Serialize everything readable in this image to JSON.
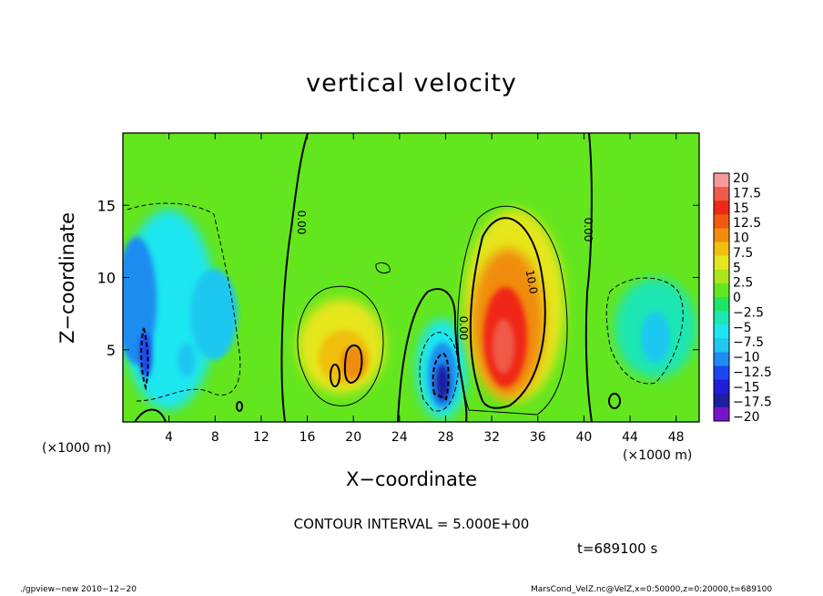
{
  "chart_data": {
    "type": "heatmap",
    "title": "vertical velocity",
    "xlabel": "X−coordinate",
    "ylabel": "Z−coordinate",
    "x_unit_left": "(×1000 m)",
    "x_unit_right": "(×1000 m)",
    "xlim": [
      0,
      50
    ],
    "ylim": [
      0,
      20
    ],
    "xticks": [
      "4",
      "8",
      "12",
      "16",
      "20",
      "24",
      "28",
      "32",
      "36",
      "40",
      "44",
      "48"
    ],
    "yticks": [
      "5",
      "10",
      "15"
    ],
    "colorbar": {
      "labels": [
        "20",
        "17.5",
        "15",
        "12.5",
        "10",
        "7.5",
        "5",
        "2.5",
        "0",
        "−2.5",
        "−5",
        "−7.5",
        "−10",
        "−12.5",
        "−15",
        "−17.5",
        "−20"
      ],
      "colors": [
        "#f49a9a",
        "#f05a4a",
        "#f02818",
        "#f05a10",
        "#f08c10",
        "#f0c010",
        "#e6e61e",
        "#aae61e",
        "#64e61e",
        "#1ee664",
        "#1ee6b4",
        "#1ee6f0",
        "#1ec8f0",
        "#1e8cf0",
        "#1e46f0",
        "#1e1edc",
        "#1e1ea0",
        "#7814c8"
      ]
    },
    "contour_interval": "CONTOUR INTERVAL = 5.000E+00",
    "contour_labels": [
      "0.00",
      "0.00",
      "0.00",
      "10.0"
    ],
    "features": [
      {
        "x": 2,
        "z": 9,
        "value": -9
      },
      {
        "x": 7,
        "z": 6,
        "value": -6
      },
      {
        "x": 19,
        "z": 5,
        "value": 9
      },
      {
        "x": 27.5,
        "z": 3.5,
        "value": -17
      },
      {
        "x": 32.8,
        "z": 6,
        "value": 17
      },
      {
        "x": 46,
        "z": 6,
        "value": -5
      }
    ]
  },
  "time_label": "t=689100 s",
  "footer_left": "./gpview−new   2010−12−20",
  "footer_right": "MarsCond_VelZ.nc@VelZ,x=0:50000,z=0:20000,t=689100"
}
